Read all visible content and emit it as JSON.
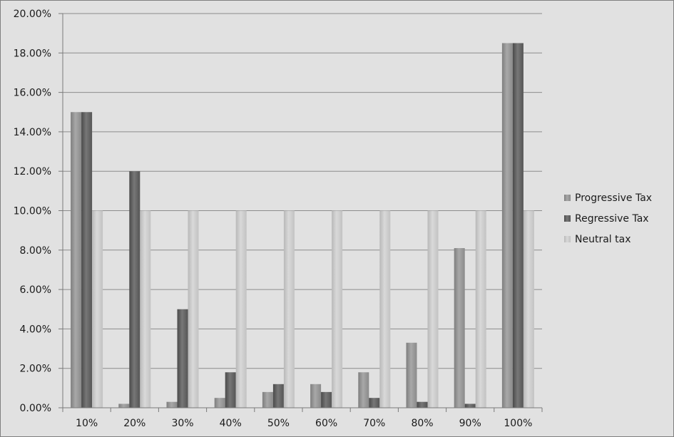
{
  "chart_data": {
    "type": "bar",
    "title": "",
    "xlabel": "",
    "ylabel": "",
    "categories": [
      "10%",
      "20%",
      "30%",
      "40%",
      "50%",
      "60%",
      "70%",
      "80%",
      "90%",
      "100%"
    ],
    "series": [
      {
        "name": "Progressive Tax",
        "values": [
          15.0,
          0.2,
          0.3,
          0.5,
          0.8,
          1.2,
          1.8,
          3.3,
          8.1,
          18.5
        ],
        "color": "#9a9a9a"
      },
      {
        "name": "Regressive Tax",
        "values": [
          15.0,
          12.0,
          5.0,
          1.8,
          1.2,
          0.8,
          0.5,
          0.3,
          0.2,
          18.5
        ],
        "color": "#666666"
      },
      {
        "name": "Neutral tax",
        "values": [
          10.0,
          10.0,
          10.0,
          10.0,
          10.0,
          10.0,
          10.0,
          10.0,
          10.0,
          10.0
        ],
        "color": "#c8c8c8"
      }
    ],
    "ylim": [
      0,
      20
    ],
    "yticks": [
      "0.00%",
      "2.00%",
      "4.00%",
      "6.00%",
      "8.00%",
      "10.00%",
      "12.00%",
      "14.00%",
      "16.00%",
      "18.00%",
      "20.00%"
    ],
    "grid": true,
    "legend_position": "right"
  }
}
